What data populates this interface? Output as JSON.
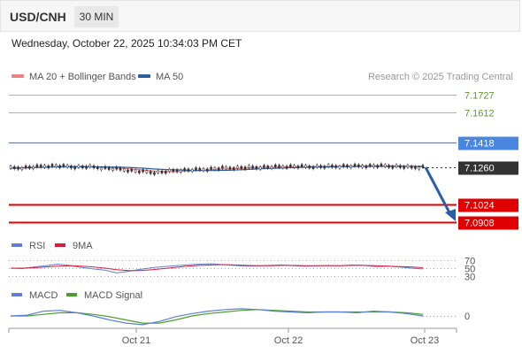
{
  "header": {
    "symbol": "USD/CNH",
    "timeframe": "30 MIN",
    "datetime": "Wednesday, October 22, 2025 10:34:03 PM CET"
  },
  "legend": {
    "ma20": "MA 20 + Bollinger Bands",
    "ma50": "MA 50",
    "credit": "Research © 2025 Trading Central",
    "rsi": "RSI",
    "ma9": "9MA",
    "macd": "MACD",
    "macd_signal": "MACD Signal"
  },
  "colors": {
    "resistance_green": "#8fcf72",
    "resistance_blue": "#4a86e0",
    "support_red": "#e00000",
    "current_dark": "#333333",
    "ma20": "#f08080",
    "ma50": "#2a5fa8",
    "arrow": "#2a5fa8",
    "rsi": "#5b7fd6",
    "ma9": "#d81c3c",
    "macd": "#5b7fd6",
    "signal": "#4aa02c"
  },
  "chart_data": {
    "type": "line",
    "price_levels": [
      {
        "label": "7.1727",
        "value": 7.1727,
        "kind": "resistance",
        "color": "#8fcf72"
      },
      {
        "label": "7.1612",
        "value": 7.1612,
        "kind": "resistance",
        "color": "#8fcf72"
      },
      {
        "label": "7.1418",
        "value": 7.1418,
        "kind": "pivot",
        "color": "#4a86e0"
      },
      {
        "label": "7.1260",
        "value": 7.126,
        "kind": "current",
        "color": "#333333"
      },
      {
        "label": "7.1024",
        "value": 7.1024,
        "kind": "support",
        "color": "#e00000"
      },
      {
        "label": "7.0908",
        "value": 7.0908,
        "kind": "support",
        "color": "#e00000"
      }
    ],
    "price_ylim": [
      7.0908,
      7.1727
    ],
    "x_ticks": [
      "Oct 21",
      "Oct 22",
      "Oct 23"
    ],
    "price_series": [
      7.1255,
      7.1258,
      7.1262,
      7.1268,
      7.127,
      7.1266,
      7.1262,
      7.1264,
      7.1258,
      7.1252,
      7.1247,
      7.1238,
      7.1232,
      7.1226,
      7.1233,
      7.1241,
      7.1243,
      7.1246,
      7.125,
      7.1255,
      7.1257,
      7.1259,
      7.126,
      7.1262,
      7.1264,
      7.1266,
      7.1266,
      7.1264,
      7.1265,
      7.1266,
      7.1268,
      7.1268,
      7.1269,
      7.127,
      7.1268,
      7.1265,
      7.126,
      7.1262
    ],
    "rsi": {
      "levels": [
        70,
        50,
        30
      ],
      "rsi_values": [
        50,
        49,
        53,
        56,
        60,
        57,
        52,
        48,
        45,
        38,
        42,
        47,
        51,
        54,
        56,
        58,
        60,
        61,
        59,
        57,
        55,
        56,
        57,
        58,
        56,
        55,
        56,
        57,
        56,
        58,
        57,
        54,
        55,
        53,
        50,
        48
      ],
      "ma9_values": [
        50,
        50,
        51,
        53,
        55,
        56,
        55,
        53,
        50,
        46,
        44,
        44,
        46,
        49,
        52,
        55,
        57,
        58,
        59,
        58,
        57,
        56,
        56,
        57,
        57,
        56,
        56,
        56,
        56,
        57,
        57,
        56,
        55,
        54,
        53,
        51
      ]
    },
    "macd": {
      "zero_label": "0",
      "macd_values": [
        0.0,
        0.0001,
        0.0006,
        0.0007,
        0.0004,
        0.0,
        -0.0005,
        -0.0009,
        -0.0011,
        -0.0007,
        -0.0001,
        0.0003,
        0.0006,
        0.0008,
        0.0009,
        0.0008,
        0.0006,
        0.0005,
        0.0004,
        0.0005,
        0.0005,
        0.0004,
        0.0006,
        0.0005,
        0.0003,
        0.0
      ],
      "signal_values": [
        0.0,
        0.0,
        0.0002,
        0.0004,
        0.0004,
        0.0002,
        -0.0001,
        -0.0005,
        -0.0009,
        -0.0009,
        -0.0005,
        0.0,
        0.0003,
        0.0005,
        0.0007,
        0.0008,
        0.0007,
        0.0006,
        0.0005,
        0.0005,
        0.0005,
        0.0005,
        0.0005,
        0.0005,
        0.0004,
        0.0002
      ]
    }
  }
}
